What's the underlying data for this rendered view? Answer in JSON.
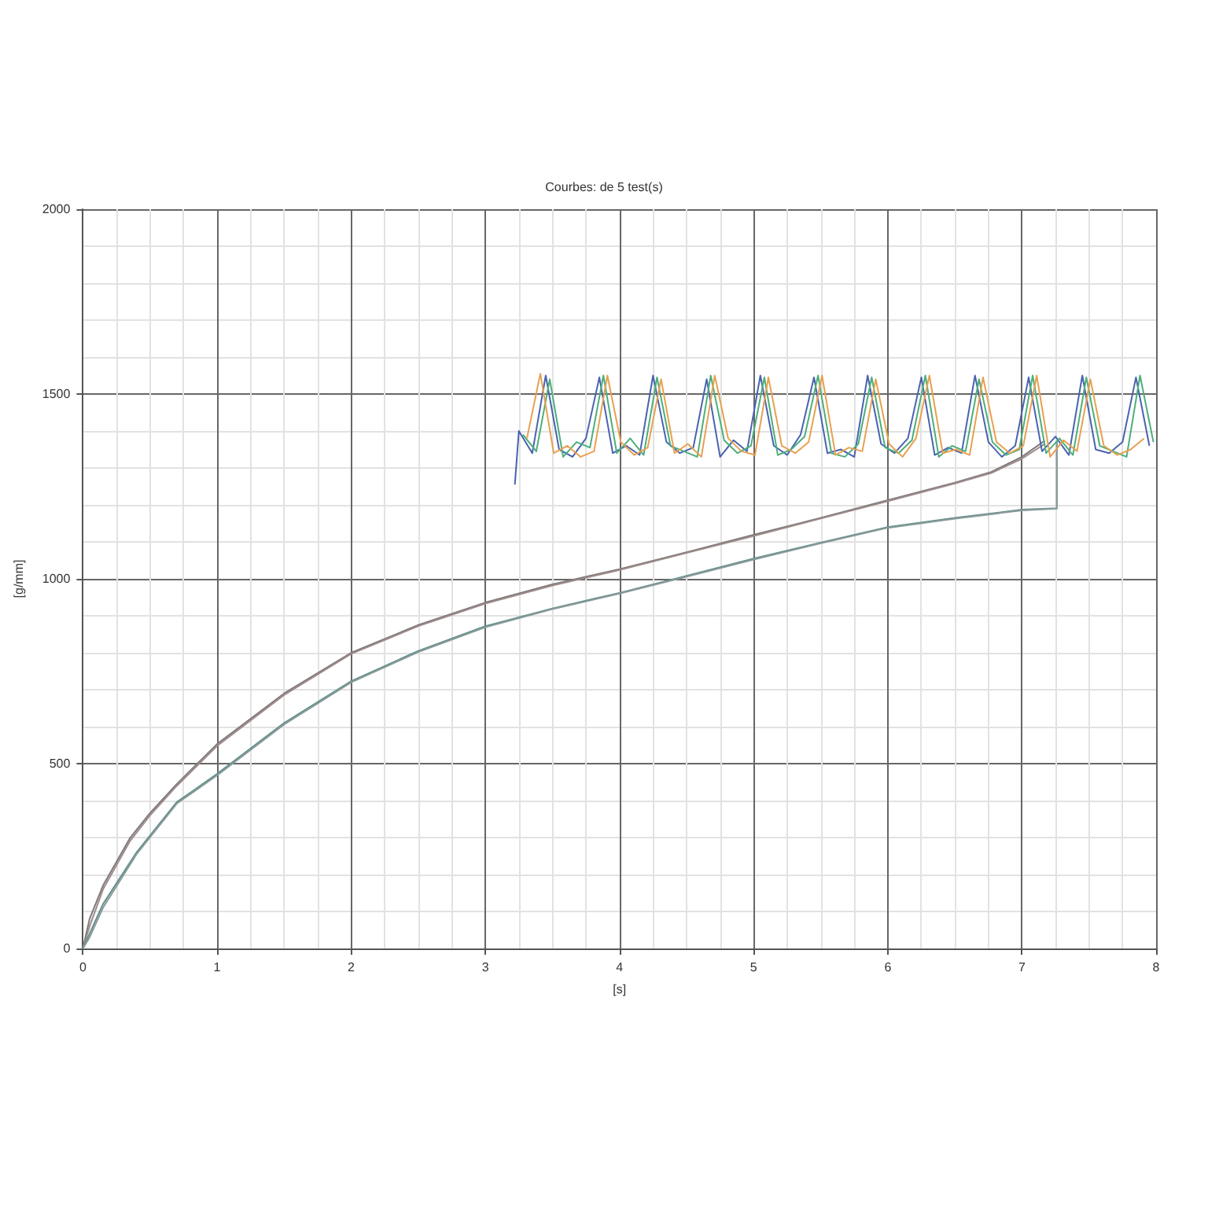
{
  "chart_data": {
    "type": "line",
    "title": "Courbes: de 5 test(s)",
    "xlabel": "[s]",
    "ylabel": "[g/mm]",
    "xlim": [
      0,
      8
    ],
    "xticks": [
      0,
      1,
      2,
      3,
      4,
      5,
      6,
      7,
      8
    ],
    "ylim": [
      0,
      2000
    ],
    "yticks": [
      0,
      500,
      1000,
      1500,
      2000
    ],
    "grid": true,
    "marker": "none",
    "line_style": "solid",
    "series": [
      {
        "color": "#7a7a7a",
        "x": [
          0,
          0.05,
          0.15,
          0.35,
          0.5,
          0.7,
          1,
          1.5,
          2,
          2.5,
          3,
          3.5,
          4,
          4.5,
          5,
          5.5,
          6,
          6.5,
          6.77,
          7.0,
          7.17
        ],
        "values": [
          0,
          80,
          170,
          298,
          366,
          445,
          553,
          690,
          800,
          875,
          936,
          985,
          1026,
          1072,
          1119,
          1165,
          1213,
          1260,
          1289,
          1330,
          1374
        ]
      },
      {
        "color": "#a08a8a",
        "x": [
          0,
          0.05,
          0.15,
          0.35,
          0.5,
          0.7,
          1,
          1.5,
          2,
          2.5,
          3,
          3.5,
          4,
          4.5,
          5,
          5.5,
          6,
          6.5,
          6.77,
          7.0,
          7.17
        ],
        "values": [
          0,
          60,
          160,
          290,
          360,
          440,
          548,
          686,
          797,
          872,
          933,
          982,
          1024,
          1070,
          1116,
          1163,
          1210,
          1258,
          1286,
          1325,
          1365
        ]
      },
      {
        "color": "#5f8f8a",
        "x": [
          0,
          0.05,
          0.15,
          0.4,
          0.7,
          1,
          1.5,
          2,
          2.5,
          3,
          3.5,
          4,
          4.5,
          5,
          5.5,
          6,
          6.5,
          7,
          7.26,
          7.26
        ],
        "values": [
          0,
          40,
          120,
          260,
          396,
          472,
          610,
          723,
          805,
          872,
          920,
          962,
          1008,
          1055,
          1098,
          1140,
          1165,
          1187,
          1191,
          1374
        ]
      },
      {
        "color": "#8a9a9a",
        "x": [
          0,
          0.05,
          0.15,
          0.4,
          0.7,
          1,
          1.5,
          2,
          2.5,
          3,
          3.5,
          4,
          4.5,
          5,
          5.5,
          6,
          6.5,
          7,
          7.26,
          7.26
        ],
        "values": [
          0,
          30,
          110,
          255,
          392,
          468,
          606,
          720,
          802,
          869,
          918,
          960,
          1006,
          1052,
          1096,
          1138,
          1163,
          1185,
          1190,
          1370
        ]
      },
      {
        "color": "#4a62b0",
        "x": [
          3.22,
          3.25,
          3.35,
          3.45,
          3.55,
          3.65,
          3.75,
          3.85,
          3.95,
          4.05,
          4.15,
          4.25,
          4.35,
          4.45,
          4.55,
          4.65,
          4.75,
          4.85,
          4.95,
          5.05,
          5.15,
          5.25,
          5.35,
          5.45,
          5.55,
          5.65,
          5.75,
          5.85,
          5.95,
          6.05,
          6.15,
          6.25,
          6.35,
          6.45,
          6.55,
          6.65,
          6.75,
          6.85,
          6.95,
          7.05,
          7.15,
          7.25,
          7.35,
          7.45,
          7.55,
          7.65,
          7.75,
          7.85,
          7.95
        ],
        "values": [
          1255,
          1400,
          1340,
          1550,
          1350,
          1330,
          1380,
          1545,
          1340,
          1360,
          1335,
          1550,
          1370,
          1340,
          1355,
          1540,
          1330,
          1375,
          1345,
          1550,
          1360,
          1335,
          1390,
          1545,
          1340,
          1350,
          1330,
          1550,
          1365,
          1340,
          1380,
          1545,
          1335,
          1355,
          1340,
          1550,
          1370,
          1330,
          1360,
          1545,
          1345,
          1385,
          1335,
          1550,
          1350,
          1340,
          1370,
          1545,
          1360
        ]
      },
      {
        "color": "#4caf7a",
        "x": [
          3.28,
          3.38,
          3.48,
          3.58,
          3.68,
          3.78,
          3.88,
          3.98,
          4.08,
          4.18,
          4.28,
          4.38,
          4.48,
          4.58,
          4.68,
          4.78,
          4.88,
          4.98,
          5.08,
          5.18,
          5.28,
          5.38,
          5.48,
          5.58,
          5.68,
          5.78,
          5.88,
          5.98,
          6.08,
          6.18,
          6.28,
          6.38,
          6.48,
          6.58,
          6.68,
          6.78,
          6.88,
          6.98,
          7.08,
          7.18,
          7.28,
          7.38,
          7.48,
          7.58,
          7.68,
          7.78,
          7.88,
          7.98
        ],
        "values": [
          1390,
          1345,
          1540,
          1330,
          1370,
          1355,
          1550,
          1340,
          1380,
          1335,
          1545,
          1360,
          1345,
          1330,
          1550,
          1375,
          1340,
          1360,
          1545,
          1335,
          1350,
          1385,
          1550,
          1340,
          1330,
          1365,
          1545,
          1355,
          1340,
          1375,
          1550,
          1330,
          1360,
          1345,
          1540,
          1370,
          1335,
          1350,
          1550,
          1340,
          1380,
          1335,
          1545,
          1360,
          1345,
          1330,
          1550,
          1370
        ]
      },
      {
        "color": "#e8a050",
        "x": [
          3.31,
          3.41,
          3.51,
          3.61,
          3.71,
          3.81,
          3.91,
          4.01,
          4.11,
          4.21,
          4.31,
          4.41,
          4.51,
          4.61,
          4.71,
          4.81,
          4.91,
          5.01,
          5.11,
          5.21,
          5.31,
          5.41,
          5.51,
          5.61,
          5.71,
          5.81,
          5.91,
          6.01,
          6.11,
          6.21,
          6.31,
          6.41,
          6.51,
          6.61,
          6.71,
          6.81,
          6.91,
          7.01,
          7.11,
          7.21,
          7.31,
          7.41,
          7.51,
          7.61,
          7.71,
          7.81,
          7.91
        ],
        "values": [
          1380,
          1555,
          1340,
          1360,
          1330,
          1345,
          1550,
          1370,
          1335,
          1355,
          1540,
          1340,
          1365,
          1330,
          1550,
          1380,
          1345,
          1335,
          1545,
          1360,
          1340,
          1370,
          1550,
          1335,
          1355,
          1345,
          1540,
          1365,
          1330,
          1380,
          1550,
          1340,
          1350,
          1335,
          1545,
          1370,
          1340,
          1360,
          1550,
          1330,
          1375,
          1345,
          1540,
          1360,
          1335,
          1350,
          1380
        ]
      }
    ]
  }
}
